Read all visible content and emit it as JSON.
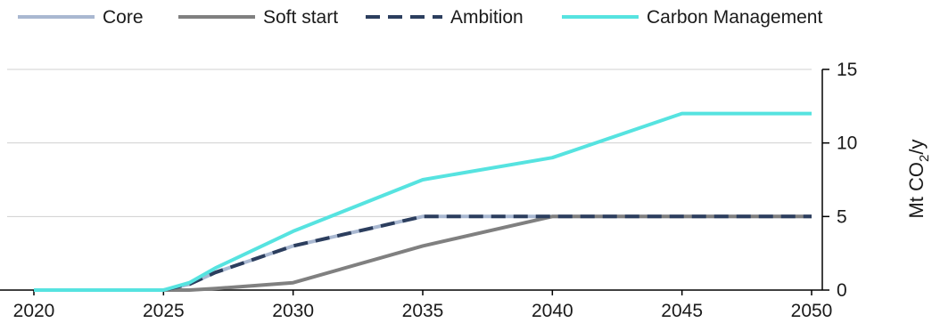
{
  "chart_data": {
    "type": "line",
    "x": [
      2020,
      2025,
      2026,
      2027,
      2030,
      2035,
      2040,
      2045,
      2050
    ],
    "series": [
      {
        "name": "Core",
        "color": "#a9b8d1",
        "dash": "solid",
        "values": [
          0,
          0,
          0.4,
          1.2,
          3,
          5,
          5,
          5,
          5
        ]
      },
      {
        "name": "Soft start",
        "color": "#808080",
        "dash": "solid",
        "values": [
          0,
          0,
          0,
          0.1,
          0.5,
          3,
          5,
          5,
          5
        ]
      },
      {
        "name": "Ambition",
        "color": "#2c3e5e",
        "dash": "dashed",
        "values": [
          0,
          0,
          0.4,
          1.2,
          3,
          5,
          5,
          5,
          5
        ]
      },
      {
        "name": "Carbon Management",
        "color": "#56e3e0",
        "dash": "solid",
        "values": [
          0,
          0,
          0.5,
          1.5,
          4,
          7.5,
          9,
          12,
          12
        ]
      }
    ],
    "xticks": [
      "2020",
      "2025",
      "2030",
      "2035",
      "2040",
      "2045",
      "2050"
    ],
    "yticks": [
      "0",
      "5",
      "10",
      "15"
    ],
    "ylabel": "Mt CO2/y",
    "ylabel_parts": {
      "main": "Mt CO",
      "sub": "2",
      "tail": "/y"
    },
    "xlim": [
      2020,
      2050
    ],
    "ylim": [
      0,
      15
    ],
    "y_axis_side": "right",
    "grid": "horizontal",
    "legend_position": "top"
  }
}
